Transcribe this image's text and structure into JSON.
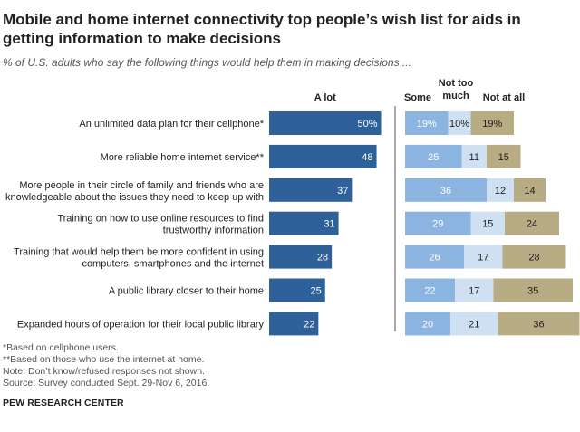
{
  "title": "Mobile and home internet connectivity top people’s wish list for aids in getting information to make decisions",
  "subtitle": "% of U.S. adults who say the following things would help them in making decisions ...",
  "notes": [
    "*Based on cellphone users.",
    "**Based on those who use the internet at home.",
    "Note: Don’t know/refused responses not shown.",
    "Source: Survey conducted Sept. 29-Nov 6, 2016."
  ],
  "source_org": "PEW RESEARCH CENTER",
  "colors": {
    "a_lot": "#2e6099",
    "some": "#8cb4e0",
    "not_too_much": "#cfe0f2",
    "not_at_all": "#b7ac84",
    "divider": "#555555"
  },
  "chart_data": {
    "type": "bar",
    "categories": [
      [
        "An unlimited data plan for their cellphone*"
      ],
      [
        "More reliable home internet service**"
      ],
      [
        "More people in their circle of family and friends who are",
        "knowledgeable about the issues they need to keep up with"
      ],
      [
        "Training on how to use online resources to find",
        "trustworthy information"
      ],
      [
        "Training that would help them be more confident in using",
        "computers, smartphones and the internet"
      ],
      [
        "A public library closer to their home"
      ],
      [
        "Expanded hours of operation for their local public library"
      ]
    ],
    "left_panel": {
      "header": "A lot",
      "values": [
        50,
        48,
        37,
        31,
        28,
        25,
        22
      ],
      "labels": [
        "50%",
        "48",
        "37",
        "31",
        "28",
        "25",
        "22"
      ]
    },
    "right_panel": {
      "headers": {
        "some": "Some",
        "not_too_much": [
          "Not too",
          "much"
        ],
        "not_at_all": "Not at all"
      },
      "series": [
        {
          "name": "Some",
          "values": [
            19,
            25,
            36,
            29,
            26,
            22,
            20
          ],
          "labels": [
            "19%",
            "25",
            "36",
            "29",
            "26",
            "22",
            "20"
          ]
        },
        {
          "name": "Not too much",
          "values": [
            10,
            11,
            12,
            15,
            17,
            17,
            21
          ],
          "labels": [
            "10%",
            "11",
            "12",
            "15",
            "17",
            "17",
            "21"
          ]
        },
        {
          "name": "Not at all",
          "values": [
            19,
            15,
            14,
            24,
            28,
            35,
            36
          ],
          "labels": [
            "19%",
            "15",
            "14",
            "24",
            "28",
            "35",
            "36"
          ]
        }
      ]
    },
    "stacked": true
  }
}
